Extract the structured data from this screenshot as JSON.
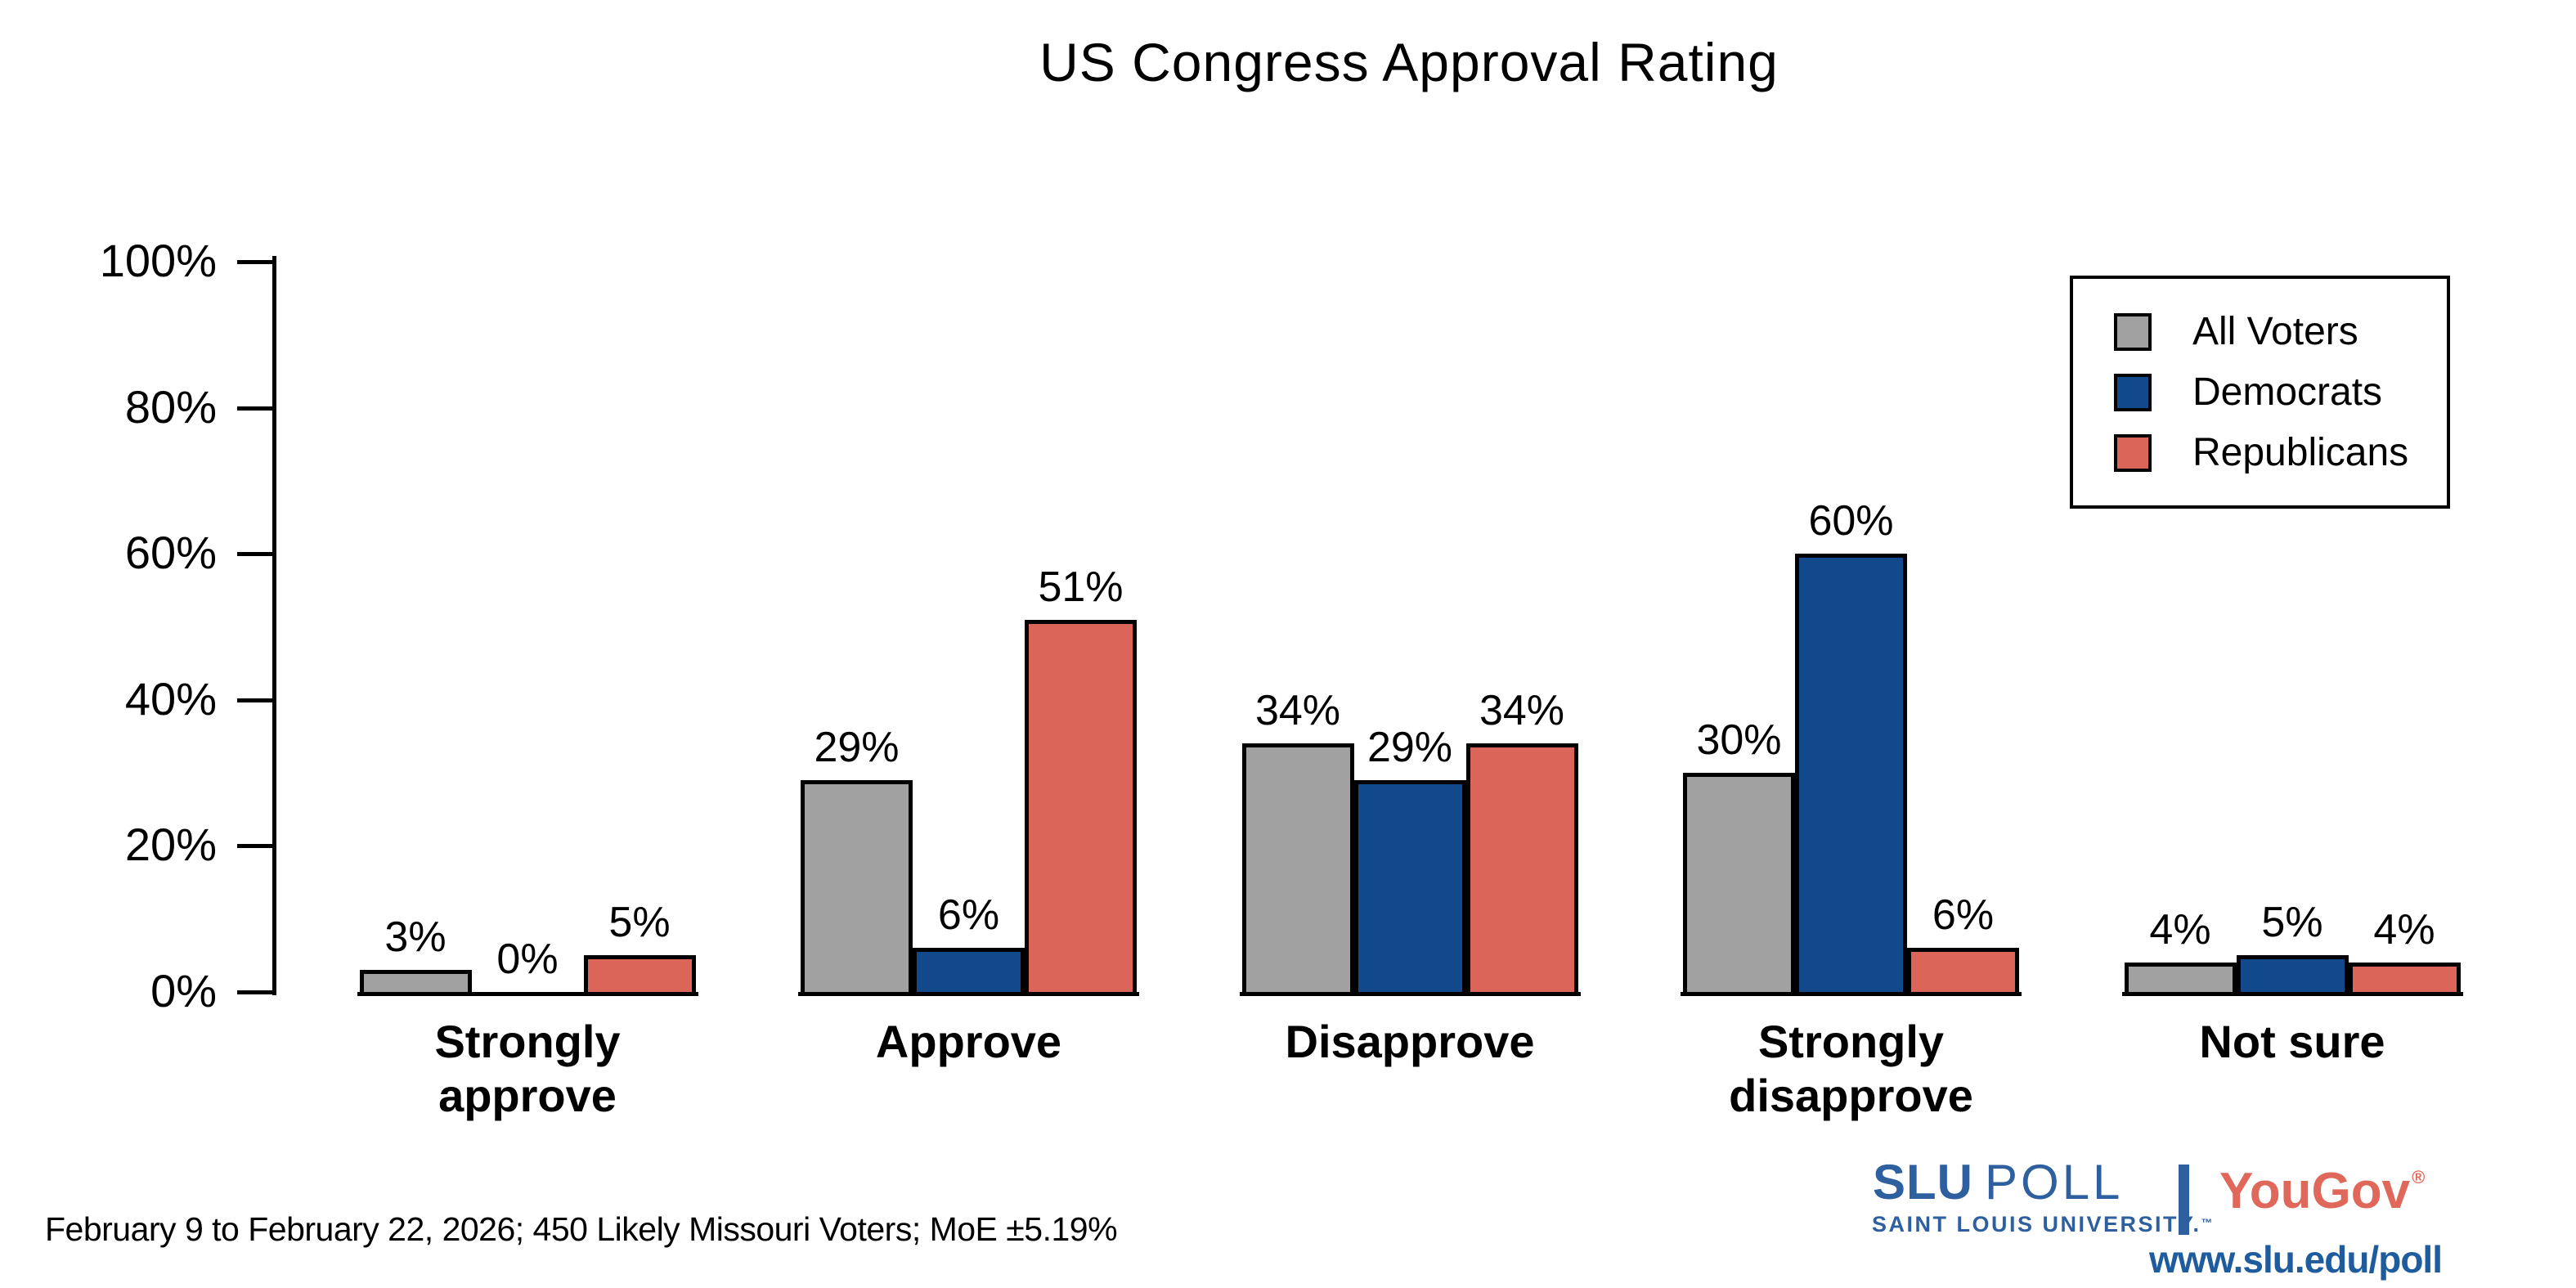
{
  "title": "US Congress Approval Rating",
  "footer_note": "February 9 to February 22, 2026; 450 Likely Missouri Voters; MoE ±5.19%",
  "branding": {
    "slu": "SLU",
    "poll": "POLL",
    "subtitle": "SAINT LOUIS UNIVERSITY.",
    "tm": "™",
    "partner": "YouGov",
    "reg": "®",
    "website": "www.slu.edu/poll",
    "slu_blue": "#2e5f9e",
    "yougov_red": "#e0685a"
  },
  "chart_data": {
    "type": "bar",
    "title": "US Congress Approval Rating",
    "categories": [
      "Strongly approve",
      "Approve",
      "Disapprove",
      "Strongly disapprove",
      "Not sure"
    ],
    "series": [
      {
        "name": "All Voters",
        "color": "#a1a1a1",
        "values": [
          3,
          29,
          34,
          30,
          4
        ]
      },
      {
        "name": "Democrats",
        "color": "#11498a",
        "values": [
          0,
          6,
          29,
          60,
          5
        ]
      },
      {
        "name": "Republicans",
        "color": "#da6558",
        "values": [
          5,
          51,
          34,
          6,
          4
        ]
      }
    ],
    "value_suffix": "%",
    "ylabel": "",
    "xlabel": "",
    "ylim": [
      0,
      100
    ],
    "yticks": [
      "0%",
      "20%",
      "40%",
      "60%",
      "80%",
      "100%"
    ],
    "grid": false,
    "bar_outline": "#000000",
    "legend_position": "upper right"
  }
}
